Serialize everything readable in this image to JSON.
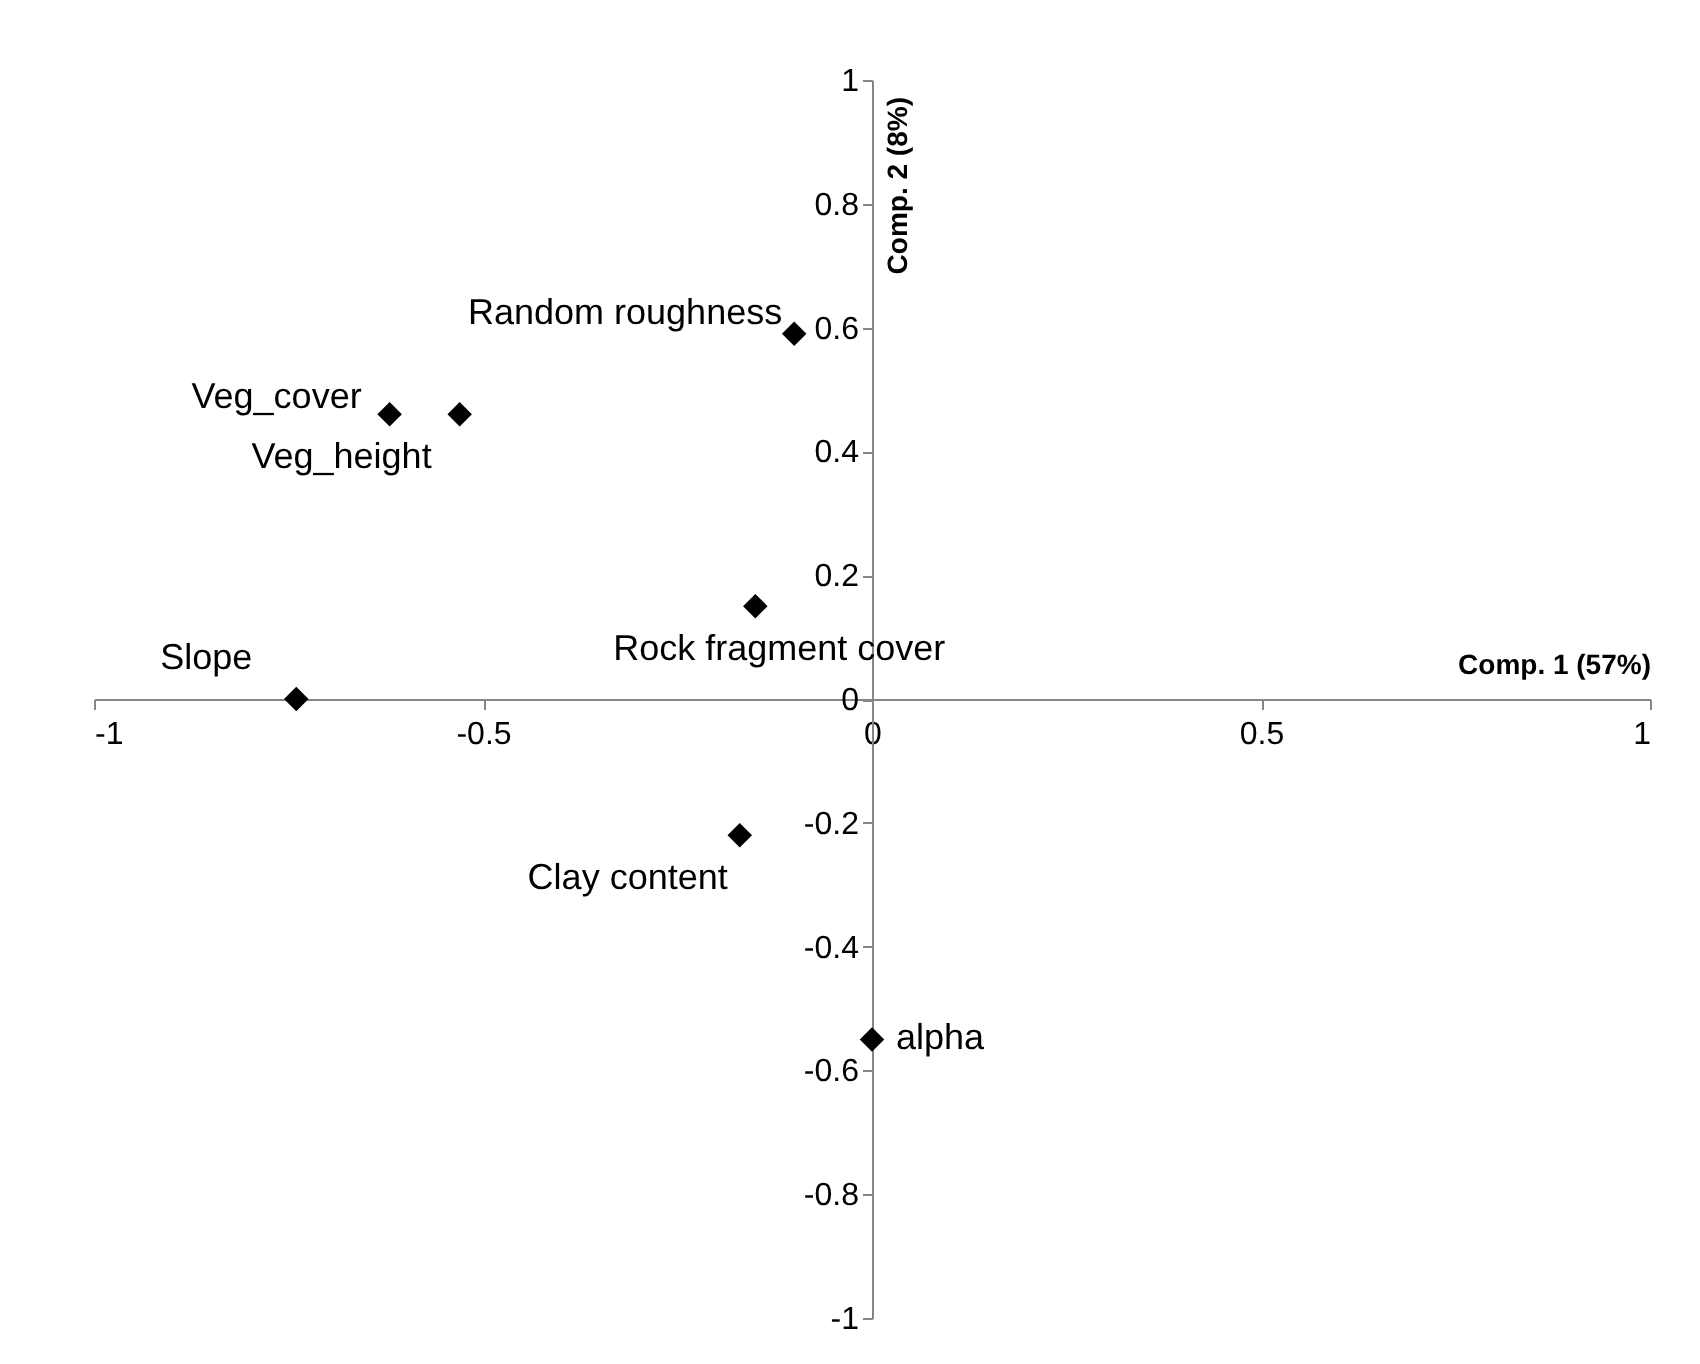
{
  "chart_data": {
    "type": "scatter",
    "xlabel": "Comp. 1 (57%)",
    "ylabel": "Comp. 2 (8%)",
    "x": [
      -0.1,
      -0.62,
      -0.53,
      -0.15,
      -0.74,
      -0.17,
      0.0
    ],
    "series": [
      {
        "color": "#000000",
        "values": [
          0.59,
          0.46,
          0.46,
          0.15,
          0.0,
          -0.22,
          -0.55
        ]
      }
    ],
    "marker": "diamond",
    "grid": false,
    "xlim": [
      -1,
      1
    ],
    "ylim": [
      -1,
      1
    ],
    "xticks": [
      -1,
      -0.5,
      0,
      0.5,
      1
    ],
    "yticks": [
      -1,
      -0.8,
      -0.6,
      -0.4,
      -0.2,
      0,
      0.2,
      0.4,
      0.6,
      0.8,
      1
    ],
    "annotations": [
      {
        "text": "Random roughness",
        "x": -0.1,
        "y": 0.59
      },
      {
        "text": "Veg_cover",
        "x": -0.62,
        "y": 0.46
      },
      {
        "text": "Veg_height",
        "x": -0.53,
        "y": 0.46
      },
      {
        "text": "Rock fragment cover",
        "x": -0.15,
        "y": 0.15
      },
      {
        "text": "Slope",
        "x": -0.74,
        "y": 0.0
      },
      {
        "text": "Clay content",
        "x": -0.17,
        "y": -0.22
      },
      {
        "text": "alpha",
        "x": 0.0,
        "y": -0.55
      }
    ]
  }
}
